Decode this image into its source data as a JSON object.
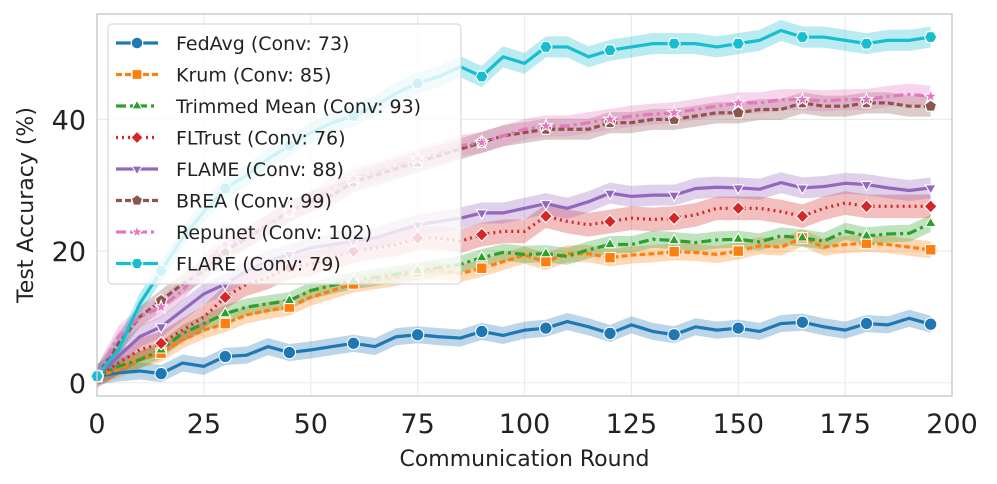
{
  "chart_data": {
    "type": "line",
    "xlabel": "Communication Round",
    "ylabel": "Test Accuracy (%)",
    "xlim": [
      0,
      200
    ],
    "ylim": [
      -2,
      56
    ],
    "xticks": [
      0,
      25,
      50,
      75,
      100,
      125,
      150,
      175,
      200
    ],
    "yticks": [
      0,
      20,
      40
    ],
    "grid": true,
    "legend_position": "top-left",
    "x": [
      0,
      5,
      10,
      15,
      20,
      25,
      30,
      35,
      40,
      45,
      50,
      55,
      60,
      65,
      70,
      75,
      80,
      85,
      90,
      95,
      100,
      105,
      110,
      115,
      120,
      125,
      130,
      135,
      140,
      145,
      150,
      155,
      160,
      165,
      170,
      175,
      180,
      185,
      190,
      195
    ],
    "series": [
      {
        "name": "FedAvg (Conv: 73)",
        "color": "#1f77b4",
        "dash": "solid",
        "marker": "circle",
        "band": 1.3,
        "values": [
          1,
          1.5,
          1.8,
          1.4,
          3,
          2.5,
          4,
          4.2,
          5.5,
          4.6,
          5,
          5.5,
          6,
          5.5,
          7,
          7.3,
          7,
          6.8,
          7.8,
          7.2,
          8,
          8.3,
          9.3,
          8.5,
          7.5,
          8.8,
          7.8,
          7.3,
          8.5,
          8,
          8.3,
          7.8,
          9,
          9.2,
          8.5,
          8,
          9,
          8.8,
          9.8,
          8.9
        ]
      },
      {
        "name": "Krum (Conv: 85)",
        "color": "#ff7f0e",
        "dash": "6,3",
        "marker": "square",
        "band": 1.3,
        "values": [
          1,
          2,
          3.5,
          4.5,
          6.5,
          8,
          9,
          10.3,
          11,
          11.5,
          13,
          14,
          15,
          15.5,
          16,
          16.8,
          17,
          16.6,
          17.4,
          18.4,
          19.4,
          18.4,
          19.6,
          19.6,
          19,
          19.4,
          19.6,
          19.9,
          19.8,
          19.5,
          20,
          20.8,
          20.6,
          22,
          20.6,
          21,
          21.2,
          21,
          20.6,
          20.2
        ]
      },
      {
        "name": "Trimmed Mean (Conv: 93)",
        "color": "#2ca02c",
        "dash": "10,4,3,4",
        "marker": "triangle-up",
        "band": 1.3,
        "values": [
          1,
          2.5,
          3.5,
          5,
          7.5,
          9,
          10.5,
          11.5,
          12,
          12.5,
          14,
          14.8,
          15.5,
          16,
          16.5,
          17,
          17.5,
          18,
          19,
          19.8,
          19.5,
          19.6,
          19.2,
          20.2,
          21,
          21,
          21.8,
          21.6,
          21.3,
          21.7,
          21.8,
          21.4,
          22.3,
          22,
          21.5,
          23,
          22.3,
          22.6,
          22.7,
          24.2
        ]
      },
      {
        "name": "FLTrust (Conv: 76)",
        "color": "#d62728",
        "dash": "2,4",
        "marker": "diamond",
        "band": 1.8,
        "values": [
          1,
          3,
          5,
          6,
          8,
          10,
          13,
          15,
          16,
          17.5,
          18,
          19,
          20,
          20.5,
          21,
          22,
          22,
          21.5,
          22.5,
          23,
          23,
          25.3,
          24.5,
          24,
          24.5,
          25,
          24.8,
          25,
          25.5,
          26.5,
          26.5,
          26.5,
          26,
          25.3,
          26.5,
          27.3,
          26.8,
          26.8,
          26.8,
          26.8
        ]
      },
      {
        "name": "FLAME (Conv: 88)",
        "color": "#9467bd",
        "dash": "solid",
        "marker": "triangle-down",
        "band": 1.6,
        "values": [
          1,
          4,
          7,
          8.5,
          11,
          13.5,
          15,
          17,
          18.5,
          19.5,
          20.5,
          21,
          21.5,
          22,
          23,
          24,
          24.5,
          25,
          25.8,
          25.8,
          26.5,
          27.2,
          26.5,
          27.5,
          28.8,
          28.3,
          28.5,
          28.5,
          29.5,
          29.7,
          29.6,
          29.4,
          30.4,
          29.6,
          29.8,
          30.3,
          30.1,
          29.6,
          29.2,
          29.6
        ]
      },
      {
        "name": "BREA (Conv: 99)",
        "color": "#8c564b",
        "dash": "6,3",
        "marker": "pentagon",
        "band": 1.6,
        "values": [
          1,
          6,
          10,
          12.5,
          15,
          17,
          20,
          22,
          24,
          26,
          27.5,
          28.5,
          30.5,
          31.5,
          32.5,
          33.5,
          34.5,
          35.5,
          36.5,
          37.5,
          38,
          38.5,
          38.5,
          38.5,
          39.5,
          39.5,
          40,
          40,
          40.5,
          41,
          41,
          41.5,
          41.5,
          42.5,
          42,
          42,
          42.5,
          42.5,
          42,
          42
        ]
      },
      {
        "name": "Repunet (Conv: 102)",
        "color": "#e377c2",
        "dash": "10,4,3,4",
        "marker": "star",
        "band": 1.6,
        "values": [
          1,
          7,
          10,
          11.5,
          14,
          18,
          21,
          22,
          24,
          26,
          27.5,
          29.5,
          31,
          32,
          33,
          34,
          35,
          36,
          36.5,
          37.5,
          38.5,
          39,
          39,
          39.5,
          40,
          40.5,
          40.8,
          41,
          41.5,
          42,
          42.5,
          42.5,
          43,
          43,
          42.8,
          43,
          43,
          43.5,
          43.8,
          43.5
        ]
      },
      {
        "name": "FLARE (Conv: 79)",
        "color": "#17becf",
        "dash": "solid",
        "marker": "hexagon",
        "band": 1.6,
        "values": [
          1,
          5,
          12,
          17,
          22,
          26,
          29.5,
          31.5,
          34,
          36,
          38,
          39.5,
          40.5,
          42,
          44,
          45.5,
          46.5,
          48,
          46.5,
          49.5,
          48.5,
          51,
          51,
          49.5,
          50.5,
          51,
          51.5,
          51.5,
          51.5,
          51,
          51.5,
          52,
          53.5,
          52.5,
          52.5,
          52,
          51.5,
          52,
          52,
          52.5
        ]
      }
    ]
  }
}
